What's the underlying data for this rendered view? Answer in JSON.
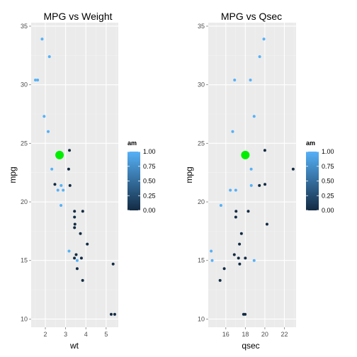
{
  "chart_data": [
    {
      "type": "scatter",
      "title": "MPG vs Weight",
      "xlabel": "wt",
      "ylabel": "mpg",
      "xlim": [
        1.3,
        5.6
      ],
      "ylim": [
        9.3,
        35.3
      ],
      "xticks": [
        2,
        3,
        4,
        5
      ],
      "yticks": [
        10,
        15,
        20,
        25,
        30,
        35
      ],
      "grid": true,
      "color_by": "am",
      "points": [
        {
          "x": 1.51,
          "y": 30.4,
          "am": 1
        },
        {
          "x": 1.62,
          "y": 30.4,
          "am": 1
        },
        {
          "x": 1.84,
          "y": 33.9,
          "am": 1
        },
        {
          "x": 1.94,
          "y": 27.3,
          "am": 1
        },
        {
          "x": 2.14,
          "y": 26.0,
          "am": 1
        },
        {
          "x": 2.2,
          "y": 32.4,
          "am": 1
        },
        {
          "x": 2.32,
          "y": 22.8,
          "am": 1
        },
        {
          "x": 2.47,
          "y": 21.5,
          "am": 0
        },
        {
          "x": 2.62,
          "y": 21.0,
          "am": 1
        },
        {
          "x": 2.77,
          "y": 19.7,
          "am": 1
        },
        {
          "x": 2.78,
          "y": 21.4,
          "am": 1
        },
        {
          "x": 2.88,
          "y": 21.0,
          "am": 1
        },
        {
          "x": 3.15,
          "y": 22.8,
          "am": 0
        },
        {
          "x": 3.17,
          "y": 15.8,
          "am": 1
        },
        {
          "x": 3.19,
          "y": 24.4,
          "am": 0
        },
        {
          "x": 3.215,
          "y": 21.4,
          "am": 0
        },
        {
          "x": 3.435,
          "y": 15.2,
          "am": 0
        },
        {
          "x": 3.44,
          "y": 18.7,
          "am": 0
        },
        {
          "x": 3.44,
          "y": 19.2,
          "am": 0
        },
        {
          "x": 3.44,
          "y": 17.8,
          "am": 0
        },
        {
          "x": 3.46,
          "y": 18.1,
          "am": 0
        },
        {
          "x": 3.52,
          "y": 15.5,
          "am": 0
        },
        {
          "x": 3.57,
          "y": 15.0,
          "am": 1
        },
        {
          "x": 3.57,
          "y": 14.3,
          "am": 0
        },
        {
          "x": 3.73,
          "y": 17.3,
          "am": 0
        },
        {
          "x": 3.78,
          "y": 15.2,
          "am": 0
        },
        {
          "x": 3.84,
          "y": 13.3,
          "am": 0
        },
        {
          "x": 3.845,
          "y": 19.2,
          "am": 0
        },
        {
          "x": 4.07,
          "y": 16.4,
          "am": 0
        },
        {
          "x": 5.25,
          "y": 10.4,
          "am": 0
        },
        {
          "x": 5.345,
          "y": 14.7,
          "am": 0
        },
        {
          "x": 5.424,
          "y": 10.4,
          "am": 0
        }
      ],
      "highlight": {
        "x": 2.7,
        "y": 24.0,
        "color": "#00ee00"
      }
    },
    {
      "type": "scatter",
      "title": "MPG vs Qsec",
      "xlabel": "qsec",
      "ylabel": "mpg",
      "xlim": [
        14.2,
        23.2
      ],
      "ylim": [
        9.3,
        35.3
      ],
      "xticks": [
        16,
        18,
        20,
        22
      ],
      "yticks": [
        10,
        15,
        20,
        25,
        30,
        35
      ],
      "grid": true,
      "color_by": "am",
      "points": [
        {
          "x": 14.5,
          "y": 15.8,
          "am": 1
        },
        {
          "x": 14.6,
          "y": 15.0,
          "am": 1
        },
        {
          "x": 15.41,
          "y": 13.3,
          "am": 0
        },
        {
          "x": 15.5,
          "y": 19.7,
          "am": 1
        },
        {
          "x": 15.84,
          "y": 14.3,
          "am": 0
        },
        {
          "x": 16.46,
          "y": 21.0,
          "am": 1
        },
        {
          "x": 16.7,
          "y": 26.0,
          "am": 1
        },
        {
          "x": 16.87,
          "y": 15.5,
          "am": 0
        },
        {
          "x": 16.9,
          "y": 30.4,
          "am": 1
        },
        {
          "x": 17.02,
          "y": 21.0,
          "am": 1
        },
        {
          "x": 17.02,
          "y": 18.7,
          "am": 0
        },
        {
          "x": 17.05,
          "y": 19.2,
          "am": 0
        },
        {
          "x": 17.3,
          "y": 15.2,
          "am": 0
        },
        {
          "x": 17.4,
          "y": 16.4,
          "am": 0
        },
        {
          "x": 17.42,
          "y": 14.7,
          "am": 0
        },
        {
          "x": 17.6,
          "y": 17.3,
          "am": 0
        },
        {
          "x": 17.82,
          "y": 10.4,
          "am": 0
        },
        {
          "x": 17.98,
          "y": 10.4,
          "am": 0
        },
        {
          "x": 18.0,
          "y": 15.2,
          "am": 0
        },
        {
          "x": 18.3,
          "y": 19.2,
          "am": 0
        },
        {
          "x": 18.52,
          "y": 30.4,
          "am": 1
        },
        {
          "x": 18.6,
          "y": 22.8,
          "am": 1
        },
        {
          "x": 18.61,
          "y": 21.4,
          "am": 1
        },
        {
          "x": 18.9,
          "y": 27.3,
          "am": 1
        },
        {
          "x": 18.9,
          "y": 15.0,
          "am": 1
        },
        {
          "x": 19.44,
          "y": 21.4,
          "am": 0
        },
        {
          "x": 19.47,
          "y": 32.4,
          "am": 1
        },
        {
          "x": 19.9,
          "y": 33.9,
          "am": 1
        },
        {
          "x": 20.0,
          "y": 24.4,
          "am": 0
        },
        {
          "x": 20.01,
          "y": 21.5,
          "am": 0
        },
        {
          "x": 20.22,
          "y": 18.1,
          "am": 0
        },
        {
          "x": 22.9,
          "y": 22.8,
          "am": 0
        }
      ],
      "highlight": {
        "x": 18.0,
        "y": 24.0,
        "color": "#00ee00"
      }
    }
  ],
  "legend": {
    "title": "am",
    "ticks": [
      1.0,
      0.75,
      0.5,
      0.25,
      0.0
    ],
    "tick_labels": [
      "1.00",
      "0.75",
      "0.50",
      "0.25",
      "0.00"
    ],
    "low_color": "#132b43",
    "high_color": "#56b1f7"
  },
  "colors": {
    "panel": "#ebebeb",
    "grid_major": "#ffffff",
    "grid_minor": "#f2f2f2"
  }
}
